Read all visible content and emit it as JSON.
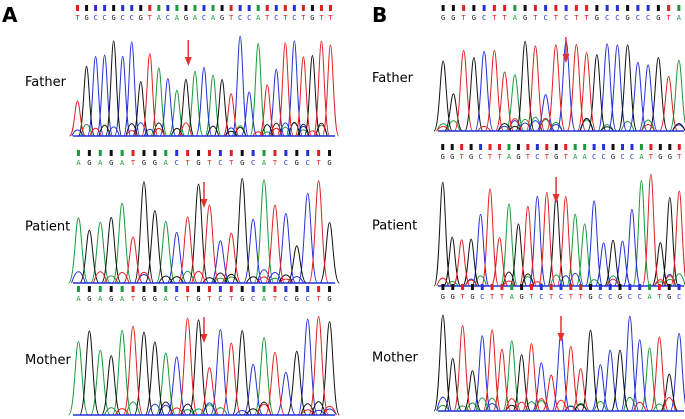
{
  "panels": [
    {
      "letter": "A",
      "tracks": [
        {
          "label": "Father",
          "bases": [
            "T",
            "G",
            "C",
            "C",
            "G",
            "C",
            "C",
            "G",
            "T",
            "A",
            "C",
            "A",
            "G",
            "A",
            "C",
            "A",
            "G",
            "T",
            "C",
            "C",
            "A",
            "T",
            "C",
            "T",
            "C",
            "T",
            "G",
            "T",
            "T"
          ]
        },
        {
          "label": "Patient",
          "bases": [
            "A",
            "G",
            "A",
            "G",
            "A",
            "T",
            "G",
            "G",
            "A",
            "C",
            "T",
            "G",
            "T",
            "C",
            "T",
            "G",
            "C",
            "A",
            "T",
            "C",
            "G",
            "C",
            "T",
            "G"
          ]
        },
        {
          "label": "Mother",
          "bases": [
            "A",
            "G",
            "A",
            "G",
            "A",
            "T",
            "G",
            "G",
            "A",
            "C",
            "T",
            "G",
            "T",
            "C",
            "T",
            "G",
            "C",
            "A",
            "T",
            "C",
            "G",
            "C",
            "T",
            "G"
          ]
        }
      ]
    },
    {
      "letter": "B",
      "tracks": [
        {
          "label": "Father",
          "bases": [
            "G",
            "G",
            "T",
            "G",
            "C",
            "T",
            "T",
            "A",
            "G",
            "T",
            "C",
            "T",
            "C",
            "T",
            "T",
            "G",
            "C",
            "C",
            "G",
            "C",
            "C",
            "G",
            "T",
            "A"
          ]
        },
        {
          "label": "Patient",
          "bases": [
            "G",
            "G",
            "T",
            "G",
            "C",
            "T",
            "T",
            "A",
            "G",
            "T",
            "C",
            "T",
            "G",
            "T",
            "A",
            "A",
            "C",
            "C",
            "G",
            "C",
            "C",
            "A",
            "T",
            "G",
            "G",
            "T"
          ]
        },
        {
          "label": "Mother",
          "bases": [
            "G",
            "G",
            "T",
            "G",
            "C",
            "T",
            "T",
            "A",
            "G",
            "T",
            "C",
            "T",
            "C",
            "T",
            "T",
            "G",
            "C",
            "C",
            "G",
            "C",
            "C",
            "A",
            "T",
            "G",
            "C"
          ]
        }
      ]
    }
  ]
}
